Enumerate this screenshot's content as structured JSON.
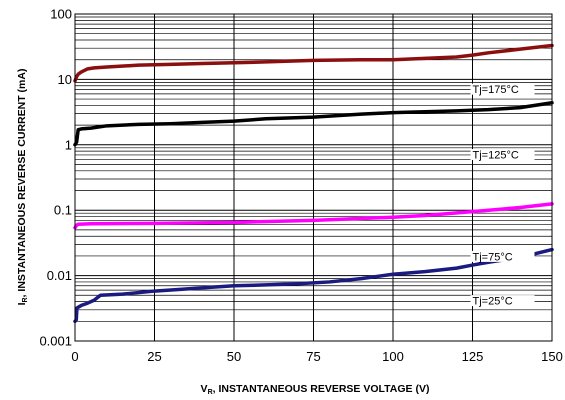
{
  "chart_data": {
    "type": "line",
    "xlabel_main": "V",
    "xlabel_sub": "R",
    "xlabel_rest": ", INSTANTANEOUS REVERSE VOLTAGE (V)",
    "ylabel_main": "I",
    "ylabel_sub": "R",
    "ylabel_rest": ", INSTANTANEOUS REVERSE CURRENT (mA)",
    "xlim": [
      0,
      150
    ],
    "ylim": [
      0.001,
      100
    ],
    "yscale": "log",
    "grid": true,
    "x_ticks": [
      0,
      25,
      50,
      75,
      100,
      125,
      150
    ],
    "x_tick_labels": [
      "0",
      "25",
      "50",
      "75",
      "100",
      "125",
      "150"
    ],
    "y_ticks": [
      0.001,
      0.01,
      0.1,
      1,
      10,
      100
    ],
    "y_tick_labels": [
      "0.001",
      "0.01",
      "0.1",
      "1",
      "10",
      "100"
    ],
    "series": [
      {
        "name": "Tj=175°C",
        "color": "#8b0f0f",
        "label_at": [
          125,
          6.5
        ],
        "points": [
          [
            0,
            9.5
          ],
          [
            0.5,
            11
          ],
          [
            1,
            12
          ],
          [
            2,
            13
          ],
          [
            4,
            14.5
          ],
          [
            6,
            15
          ],
          [
            10,
            15.5
          ],
          [
            20,
            16.5
          ],
          [
            30,
            17
          ],
          [
            40,
            17.5
          ],
          [
            50,
            18
          ],
          [
            60,
            18.5
          ],
          [
            75,
            19.5
          ],
          [
            90,
            20
          ],
          [
            100,
            20
          ],
          [
            110,
            21
          ],
          [
            120,
            22
          ],
          [
            125,
            23.5
          ],
          [
            130,
            25.5
          ],
          [
            140,
            29
          ],
          [
            150,
            33
          ]
        ]
      },
      {
        "name": "Tj=125°C",
        "color": "#000000",
        "label_at": [
          125,
          0.65
        ],
        "points": [
          [
            0,
            1.0
          ],
          [
            0.5,
            1.1
          ],
          [
            1,
            1.7
          ],
          [
            2,
            1.75
          ],
          [
            5,
            1.8
          ],
          [
            10,
            1.95
          ],
          [
            20,
            2.05
          ],
          [
            30,
            2.1
          ],
          [
            40,
            2.2
          ],
          [
            50,
            2.3
          ],
          [
            60,
            2.5
          ],
          [
            75,
            2.65
          ],
          [
            90,
            2.95
          ],
          [
            100,
            3.1
          ],
          [
            110,
            3.2
          ],
          [
            120,
            3.3
          ],
          [
            130,
            3.45
          ],
          [
            140,
            3.7
          ],
          [
            150,
            4.4
          ]
        ]
      },
      {
        "name": "Tj=75°C",
        "color": "#ff00ff",
        "label_at": [
          125,
          0.018
        ],
        "points": [
          [
            0,
            0.054
          ],
          [
            0.5,
            0.059
          ],
          [
            1,
            0.061
          ],
          [
            5,
            0.062
          ],
          [
            25,
            0.063
          ],
          [
            50,
            0.065
          ],
          [
            75,
            0.07
          ],
          [
            100,
            0.078
          ],
          [
            110,
            0.083
          ],
          [
            125,
            0.095
          ],
          [
            140,
            0.11
          ],
          [
            150,
            0.125
          ]
        ]
      },
      {
        "name": "Tj=25°C",
        "color": "#1a1a80",
        "label_at": [
          125,
          0.0038
        ],
        "points": [
          [
            0,
            0.002
          ],
          [
            0.4,
            0.0021
          ],
          [
            0.6,
            0.0032
          ],
          [
            2,
            0.0035
          ],
          [
            4,
            0.0038
          ],
          [
            6,
            0.0042
          ],
          [
            8,
            0.005
          ],
          [
            15,
            0.0052
          ],
          [
            25,
            0.0058
          ],
          [
            40,
            0.0065
          ],
          [
            50,
            0.007
          ],
          [
            60,
            0.0072
          ],
          [
            70,
            0.0075
          ],
          [
            80,
            0.008
          ],
          [
            90,
            0.009
          ],
          [
            100,
            0.0105
          ],
          [
            110,
            0.0115
          ],
          [
            120,
            0.013
          ],
          [
            125,
            0.0145
          ],
          [
            130,
            0.016
          ],
          [
            140,
            0.019
          ],
          [
            150,
            0.025
          ]
        ]
      }
    ]
  }
}
